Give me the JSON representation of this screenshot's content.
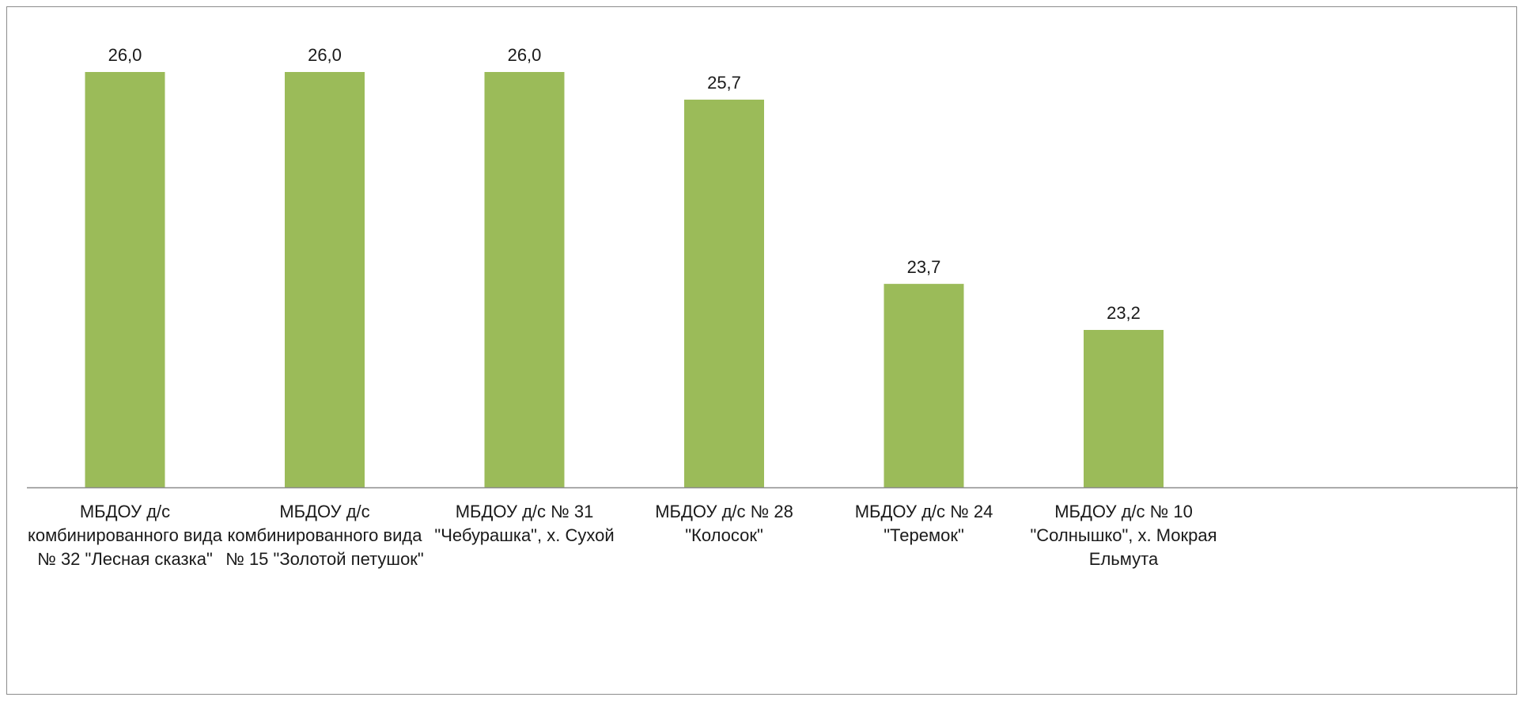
{
  "chart_data": {
    "type": "bar",
    "categories": [
      [
        "МБДОУ д/с",
        "комбинированного вида",
        "№ 32 \"Лесная сказка\""
      ],
      [
        "МБДОУ д/с",
        "комбинированного вида",
        "№ 15 \"Золотой петушок\""
      ],
      [
        "МБДОУ д/с № 31",
        "\"Чебурашка\", х. Сухой"
      ],
      [
        "МБДОУ д/с № 28",
        "\"Колосок\""
      ],
      [
        "МБДОУ д/с № 24",
        "\"Теремок\""
      ],
      [
        "МБДОУ д/с № 10",
        "\"Солнышко\", х. Мокрая",
        "Ельмута"
      ]
    ],
    "values": [
      26.0,
      26.0,
      26.0,
      25.7,
      23.7,
      23.2
    ],
    "value_labels": [
      "26,0",
      "26,0",
      "26,0",
      "25,7",
      "23,7",
      "23,2"
    ],
    "title": "",
    "xlabel": "",
    "ylabel": "",
    "bar_color": "#9BBB59",
    "axis_color": "#8c8c8c",
    "grid": false,
    "legend": "none"
  }
}
